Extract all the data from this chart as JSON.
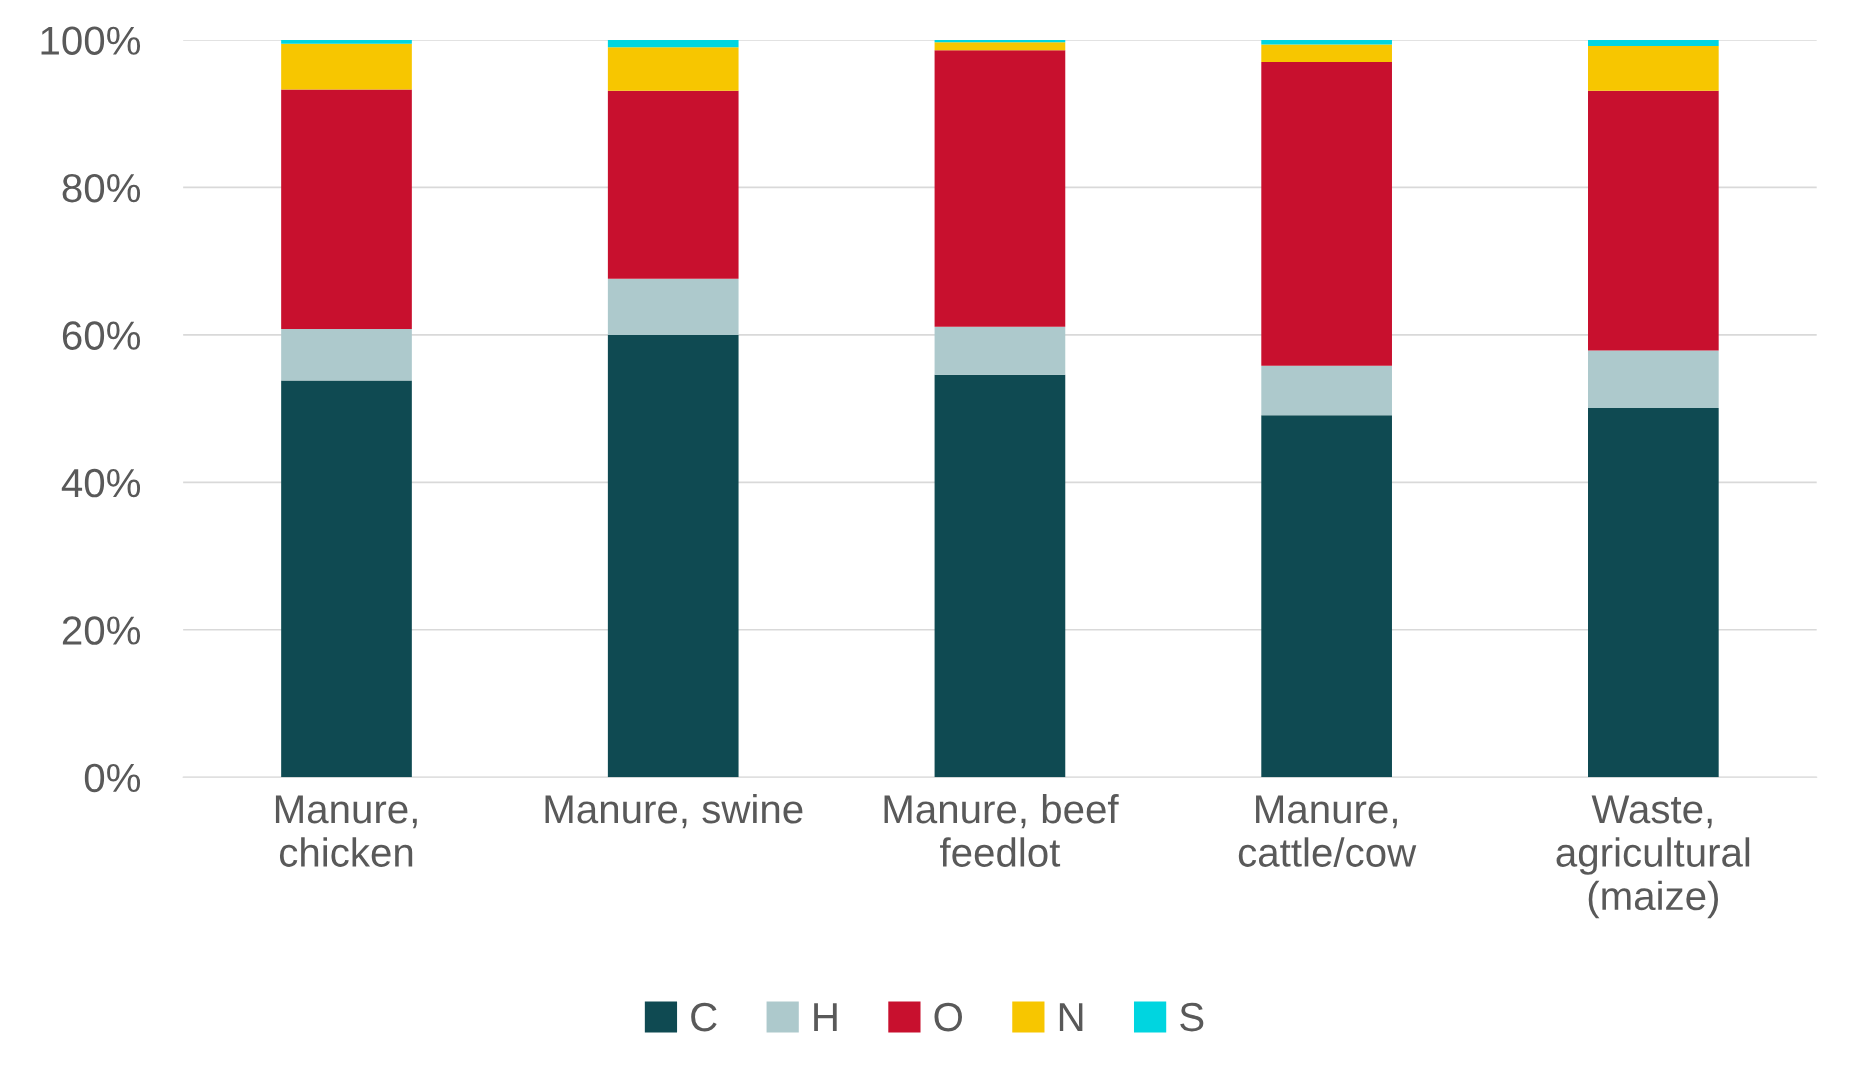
{
  "chart_data": {
    "type": "bar",
    "stacked": true,
    "categories": [
      "Manure,\nchicken",
      "Manure, swine",
      "Manure, beef\nfeedlot",
      "Manure,\ncattle/cow",
      "Waste,\nagricultural\n(maize)"
    ],
    "series": [
      {
        "name": "C",
        "color": "#0f4a52",
        "values": [
          53.8,
          60.0,
          54.6,
          49.1,
          50.1
        ]
      },
      {
        "name": "H",
        "color": "#adc9cc",
        "values": [
          7.0,
          7.6,
          6.5,
          6.7,
          7.8
        ]
      },
      {
        "name": "O",
        "color": "#c8102e",
        "values": [
          32.5,
          25.5,
          37.5,
          41.2,
          35.2
        ]
      },
      {
        "name": "N",
        "color": "#f7c600",
        "values": [
          6.2,
          5.9,
          1.1,
          2.4,
          6.1
        ]
      },
      {
        "name": "S",
        "color": "#00d5e0",
        "values": [
          0.5,
          1.0,
          0.3,
          0.6,
          0.8
        ]
      }
    ],
    "ylim": [
      0,
      100
    ],
    "yticks": [
      {
        "value": 0,
        "label": "0%"
      },
      {
        "value": 20,
        "label": "20%"
      },
      {
        "value": 40,
        "label": "40%"
      },
      {
        "value": 60,
        "label": "60%"
      },
      {
        "value": 80,
        "label": "80%"
      },
      {
        "value": 100,
        "label": "100%"
      }
    ],
    "grid": "y",
    "legend": "bottom"
  }
}
